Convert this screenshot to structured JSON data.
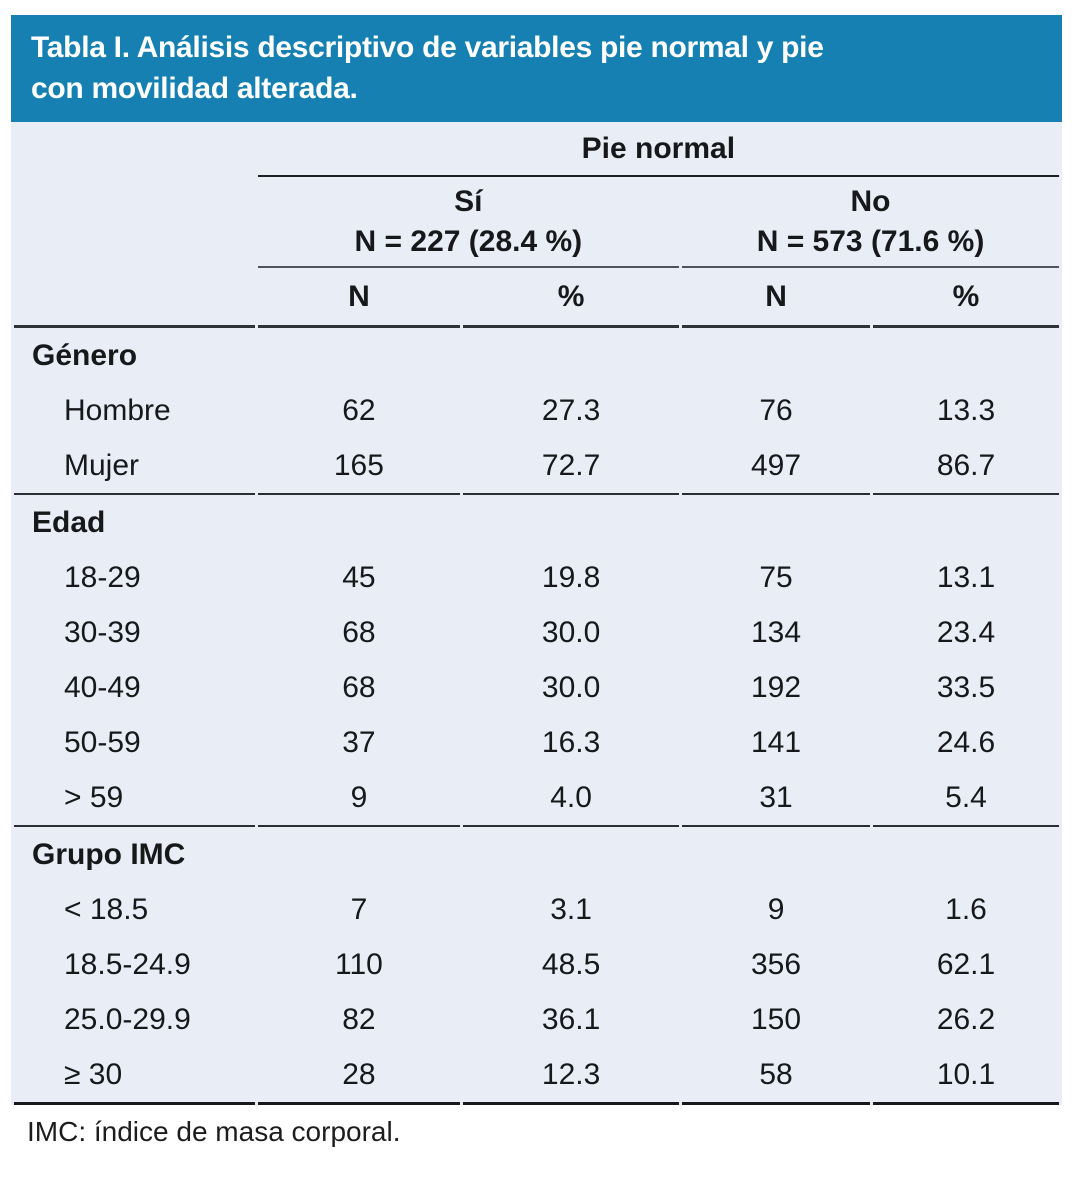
{
  "title": {
    "line1": "Tabla I. Análisis descriptivo de variables pie normal y pie",
    "line2": "con movilidad alterada."
  },
  "colors": {
    "title_bar_blue": "#1680B2",
    "table_background": "#E9EEF6",
    "rule_dark": "#2e3338"
  },
  "header": {
    "group": "Pie normal",
    "yes": {
      "label": "Sí",
      "count": "N = 227 (28.4 %)"
    },
    "no": {
      "label": "No",
      "count": "N = 573 (71.6 %)"
    },
    "cols": [
      "N",
      "%",
      "N",
      "%"
    ]
  },
  "sections": [
    {
      "name": "Género",
      "rows": [
        {
          "label": "Hombre",
          "values": [
            "62",
            "27.3",
            "76",
            "13.3"
          ]
        },
        {
          "label": "Mujer",
          "values": [
            "165",
            "72.7",
            "497",
            "86.7"
          ]
        }
      ]
    },
    {
      "name": "Edad",
      "rows": [
        {
          "label": "18-29",
          "values": [
            "45",
            "19.8",
            "75",
            "13.1"
          ]
        },
        {
          "label": "30-39",
          "values": [
            "68",
            "30.0",
            "134",
            "23.4"
          ]
        },
        {
          "label": "40-49",
          "values": [
            "68",
            "30.0",
            "192",
            "33.5"
          ]
        },
        {
          "label": "50-59",
          "values": [
            "37",
            "16.3",
            "141",
            "24.6"
          ]
        },
        {
          "label": "> 59",
          "values": [
            "9",
            "4.0",
            "31",
            "5.4"
          ]
        }
      ]
    },
    {
      "name": "Grupo IMC",
      "rows": [
        {
          "label": "< 18.5",
          "values": [
            "7",
            "3.1",
            "9",
            "1.6"
          ]
        },
        {
          "label": "18.5-24.9",
          "values": [
            "110",
            "48.5",
            "356",
            "62.1"
          ]
        },
        {
          "label": "25.0-29.9",
          "values": [
            "82",
            "36.1",
            "150",
            "26.2"
          ]
        },
        {
          "label": "≥ 30",
          "values": [
            "28",
            "12.3",
            "58",
            "10.1"
          ]
        }
      ]
    }
  ],
  "footnote": "IMC: índice de masa corporal."
}
